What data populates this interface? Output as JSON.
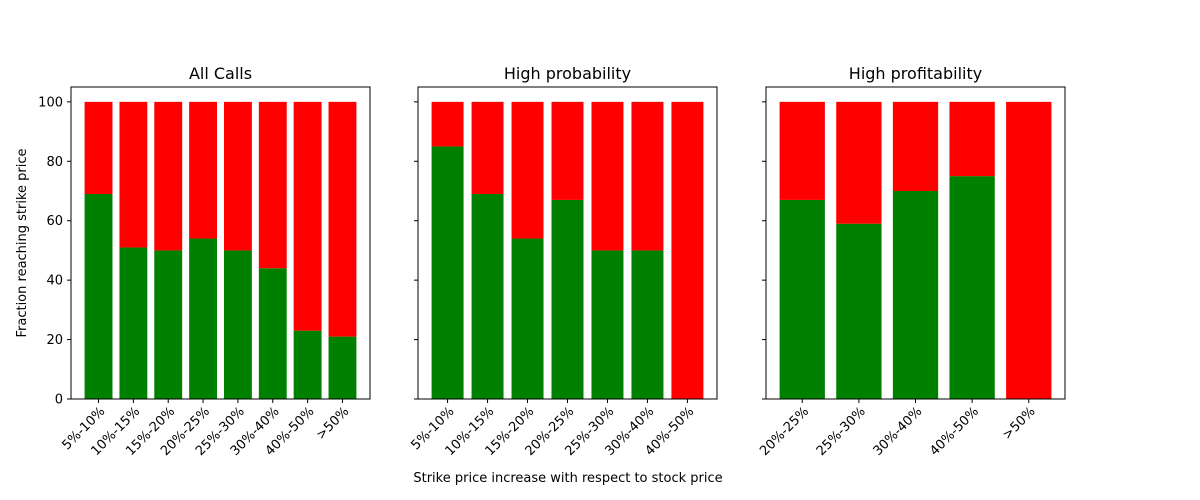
{
  "figure": {
    "xlabel": "Strike price increase with respect to stock price",
    "ylabel": "Fraction reaching strike price",
    "colors": {
      "success": "#008000",
      "failure": "#ff0000"
    }
  },
  "chart_data": [
    {
      "type": "bar",
      "stacked": true,
      "title": "All Calls",
      "categories": [
        "5%-10%",
        "10%-15%",
        "15%-20%",
        "20%-25%",
        "25%-30%",
        "30%-40%",
        "40%-50%",
        ">50%"
      ],
      "series": [
        {
          "color": "#008000",
          "values": [
            69,
            51,
            50,
            54,
            50,
            44,
            23,
            21
          ]
        },
        {
          "color": "#ff0000",
          "values": [
            31,
            49,
            50,
            46,
            50,
            56,
            77,
            79
          ]
        }
      ],
      "ylim": [
        0,
        105
      ],
      "yticks": [
        0,
        20,
        40,
        60,
        80,
        100
      ]
    },
    {
      "type": "bar",
      "stacked": true,
      "title": "High probability",
      "categories": [
        "5%-10%",
        "10%-15%",
        "15%-20%",
        "20%-25%",
        "25%-30%",
        "30%-40%",
        "40%-50%"
      ],
      "series": [
        {
          "color": "#008000",
          "values": [
            85,
            69,
            54,
            67,
            50,
            50,
            0
          ]
        },
        {
          "color": "#ff0000",
          "values": [
            15,
            31,
            46,
            33,
            50,
            50,
            100
          ]
        }
      ],
      "ylim": [
        0,
        105
      ],
      "yticks": [
        0,
        20,
        40,
        60,
        80,
        100
      ]
    },
    {
      "type": "bar",
      "stacked": true,
      "title": "High profitability",
      "categories": [
        "20%-25%",
        "25%-30%",
        "30%-40%",
        "40%-50%",
        ">50%"
      ],
      "series": [
        {
          "color": "#008000",
          "values": [
            67,
            59,
            70,
            75,
            0
          ]
        },
        {
          "color": "#ff0000",
          "values": [
            33,
            41,
            30,
            25,
            100
          ]
        }
      ],
      "ylim": [
        0,
        105
      ],
      "yticks": [
        0,
        20,
        40,
        60,
        80,
        100
      ]
    }
  ]
}
